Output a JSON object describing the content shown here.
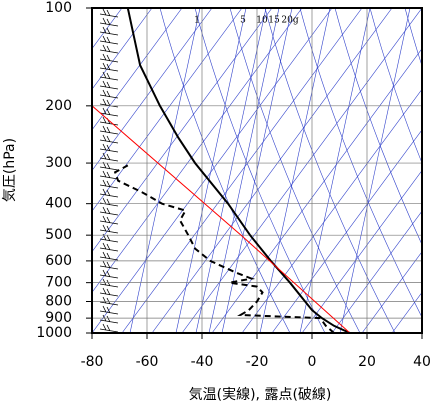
{
  "chart_data": {
    "type": "skewt",
    "xlabel": "気温(実線), 露点(破線)",
    "ylabel": "気圧(hPa)",
    "xlim": [
      -80,
      40
    ],
    "xticks": [
      -80,
      -60,
      -40,
      -20,
      0,
      20,
      40
    ],
    "ylim": [
      1000,
      100
    ],
    "yticks": [
      100,
      200,
      300,
      400,
      500,
      600,
      700,
      800,
      900,
      1000
    ],
    "ylog": true,
    "grid": true,
    "annotations": [
      "1",
      "5",
      "10",
      "15",
      "20g"
    ],
    "series": [
      {
        "color": "#000000",
        "style": "solid",
        "y": [
          1000,
          950,
          900,
          850,
          800,
          700,
          600,
          500,
          400,
          300,
          250,
          200,
          150,
          120,
          100
        ],
        "x": [
          13.8,
          8,
          3.6,
          0,
          -2.5,
          -8,
          -15,
          -22.5,
          -30.5,
          -42.5,
          -48.7,
          -55.3,
          -62.5,
          -65,
          -67
        ]
      },
      {
        "color": "#000000",
        "style": "dashed",
        "y": [
          1000,
          950,
          900,
          880,
          850,
          800,
          750,
          720,
          700,
          680,
          650,
          600,
          550,
          500,
          450,
          420,
          400,
          370,
          340,
          320,
          305
        ],
        "x": [
          8,
          5,
          3,
          -26,
          -23,
          -20,
          -18,
          -20,
          -30,
          -22,
          -28,
          -37,
          -42.5,
          -45,
          -48,
          -46,
          -54.5,
          -61.5,
          -70.5,
          -71.6,
          -67
        ]
      },
      {
        "color": "#ff0000",
        "style": "thin",
        "y": [
          1000,
          500,
          200
        ],
        "x": [
          13.8,
          -25.8,
          -80
        ]
      }
    ]
  }
}
